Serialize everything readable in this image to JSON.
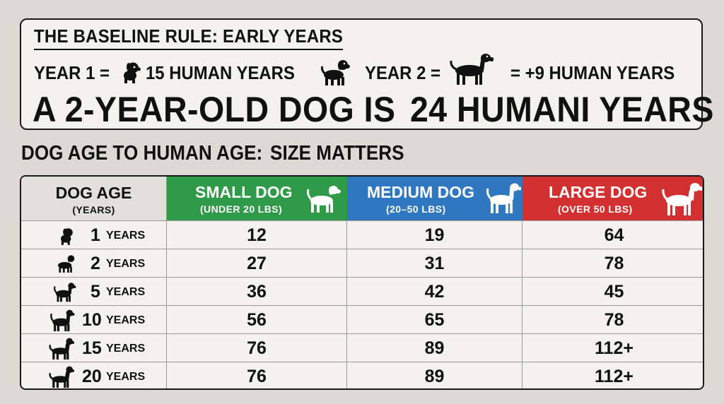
{
  "baseline": {
    "title": "THE BASELINE RULE: EARLY YEARS",
    "year1_label": "YEAR 1 =",
    "year1_value": "15 HUMAN YEARS",
    "year2_label": "YEAR 2 =",
    "year2_value": "= +9 HUMAN YEARS",
    "summary_left": "A 2-YEAR-OLD DOG IS",
    "summary_right": "24 HUMANI YEARS"
  },
  "section_title": {
    "left": "DOG AGE TO HUMAN AGE:",
    "right": "SIZE MATTERS"
  },
  "table": {
    "columns": [
      {
        "label": "DOG AGE",
        "sub": "(YEARS)"
      },
      {
        "label": "SMALL DOG",
        "sub": "(UNDER 20 LBS)",
        "color": "#2f9a48"
      },
      {
        "label": "MEDIUM DOG",
        "sub": "(20–50 LBS)",
        "color": "#2f78c0"
      },
      {
        "label": "LARGE DOG",
        "sub": "(OVER 50 LBS)",
        "color": "#d33131"
      }
    ],
    "rows": [
      {
        "age": "1",
        "unit": "YEARS",
        "small": "12",
        "medium": "19",
        "large": "64"
      },
      {
        "age": "2",
        "unit": "YEARS",
        "small": "27",
        "medium": "31",
        "large": "78"
      },
      {
        "age": "5",
        "unit": "YEARS",
        "small": "36",
        "medium": "42",
        "large": "45"
      },
      {
        "age": "10",
        "unit": "YEARS",
        "small": "56",
        "medium": "65",
        "large": "78"
      },
      {
        "age": "15",
        "unit": "YEARS",
        "small": "76",
        "medium": "89",
        "large": "112+"
      },
      {
        "age": "20",
        "unit": "YEARS",
        "small": "76",
        "medium": "89",
        "large": "112+"
      }
    ]
  }
}
